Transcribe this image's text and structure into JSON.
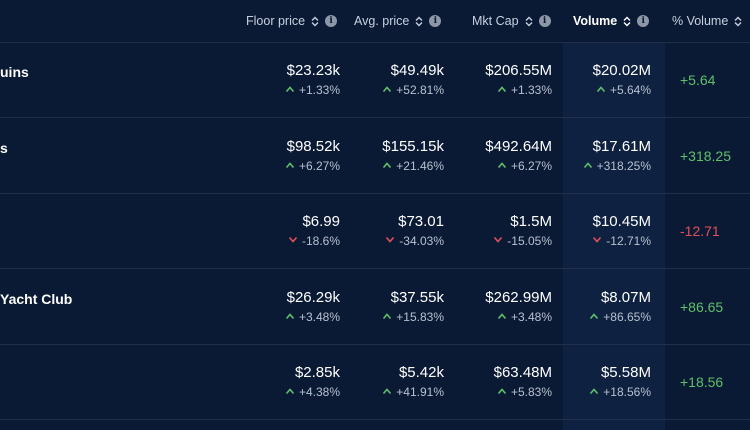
{
  "header": {
    "columns": [
      {
        "key": "floor",
        "label": "Floor price"
      },
      {
        "key": "avg",
        "label": "Avg. price"
      },
      {
        "key": "mcap",
        "label": "Mkt Cap"
      },
      {
        "key": "volume",
        "label": "Volume"
      },
      {
        "key": "pct_volume",
        "label": "% Volume"
      }
    ],
    "info_glyph": "i"
  },
  "colors": {
    "up": "#5fbf6a",
    "down": "#e0505b",
    "background": "#0b1a34"
  },
  "rows": [
    {
      "name": "uins",
      "floor": {
        "value": "$23.23k",
        "change": "+1.33%",
        "dir": "up"
      },
      "avg": {
        "value": "$49.49k",
        "change": "+52.81%",
        "dir": "up"
      },
      "mcap": {
        "value": "$206.55M",
        "change": "+1.33%",
        "dir": "up"
      },
      "volume": {
        "value": "$20.02M",
        "change": "+5.64%",
        "dir": "up"
      },
      "pct_volume": {
        "value": "+5.64",
        "dir": "up"
      }
    },
    {
      "name": "s",
      "floor": {
        "value": "$98.52k",
        "change": "+6.27%",
        "dir": "up"
      },
      "avg": {
        "value": "$155.15k",
        "change": "+21.46%",
        "dir": "up"
      },
      "mcap": {
        "value": "$492.64M",
        "change": "+6.27%",
        "dir": "up"
      },
      "volume": {
        "value": "$17.61M",
        "change": "+318.25%",
        "dir": "up"
      },
      "pct_volume": {
        "value": "+318.25",
        "dir": "up"
      }
    },
    {
      "name": "",
      "floor": {
        "value": "$6.99",
        "change": "-18.6%",
        "dir": "down"
      },
      "avg": {
        "value": "$73.01",
        "change": "-34.03%",
        "dir": "down"
      },
      "mcap": {
        "value": "$1.5M",
        "change": "-15.05%",
        "dir": "down"
      },
      "volume": {
        "value": "$10.45M",
        "change": "-12.71%",
        "dir": "down"
      },
      "pct_volume": {
        "value": "-12.71",
        "dir": "down"
      }
    },
    {
      "name": "Yacht Club",
      "floor": {
        "value": "$26.29k",
        "change": "+3.48%",
        "dir": "up"
      },
      "avg": {
        "value": "$37.55k",
        "change": "+15.83%",
        "dir": "up"
      },
      "mcap": {
        "value": "$262.99M",
        "change": "+3.48%",
        "dir": "up"
      },
      "volume": {
        "value": "$8.07M",
        "change": "+86.65%",
        "dir": "up"
      },
      "pct_volume": {
        "value": "+86.65",
        "dir": "up"
      }
    },
    {
      "name": "",
      "floor": {
        "value": "$2.85k",
        "change": "+4.38%",
        "dir": "up"
      },
      "avg": {
        "value": "$5.42k",
        "change": "+41.91%",
        "dir": "up"
      },
      "mcap": {
        "value": "$63.48M",
        "change": "+5.83%",
        "dir": "up"
      },
      "volume": {
        "value": "$5.58M",
        "change": "+18.56%",
        "dir": "up"
      },
      "pct_volume": {
        "value": "+18.56",
        "dir": "up"
      }
    }
  ]
}
